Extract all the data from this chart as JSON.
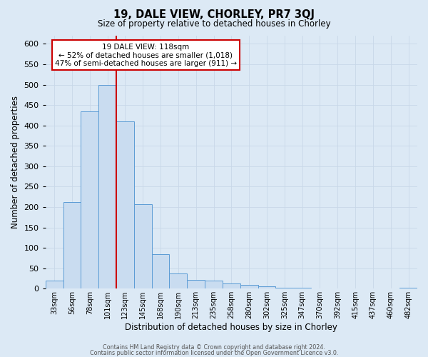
{
  "title": "19, DALE VIEW, CHORLEY, PR7 3QJ",
  "subtitle": "Size of property relative to detached houses in Chorley",
  "xlabel": "Distribution of detached houses by size in Chorley",
  "ylabel": "Number of detached properties",
  "bar_labels": [
    "33sqm",
    "56sqm",
    "78sqm",
    "101sqm",
    "123sqm",
    "145sqm",
    "168sqm",
    "190sqm",
    "213sqm",
    "235sqm",
    "258sqm",
    "280sqm",
    "302sqm",
    "325sqm",
    "347sqm",
    "370sqm",
    "392sqm",
    "415sqm",
    "437sqm",
    "460sqm",
    "482sqm"
  ],
  "bar_values": [
    20,
    212,
    435,
    500,
    410,
    207,
    85,
    37,
    22,
    20,
    12,
    10,
    5,
    3,
    2,
    1,
    1,
    1,
    0,
    0,
    2
  ],
  "bar_color": "#c9dcf0",
  "bar_edge_color": "#5b9bd5",
  "red_line_x": 4,
  "property_label": "19 DALE VIEW: 118sqm",
  "annotation_line1": "← 52% of detached houses are smaller (1,018)",
  "annotation_line2": "47% of semi-detached houses are larger (911) →",
  "annotation_box_color": "#ffffff",
  "annotation_box_edge_color": "#cc0000",
  "vline_color": "#cc0000",
  "ylim": [
    0,
    620
  ],
  "yticks": [
    0,
    50,
    100,
    150,
    200,
    250,
    300,
    350,
    400,
    450,
    500,
    550,
    600
  ],
  "grid_color": "#c8d8e8",
  "background_color": "#dce9f5",
  "footer1": "Contains HM Land Registry data © Crown copyright and database right 2024.",
  "footer2": "Contains public sector information licensed under the Open Government Licence v3.0."
}
